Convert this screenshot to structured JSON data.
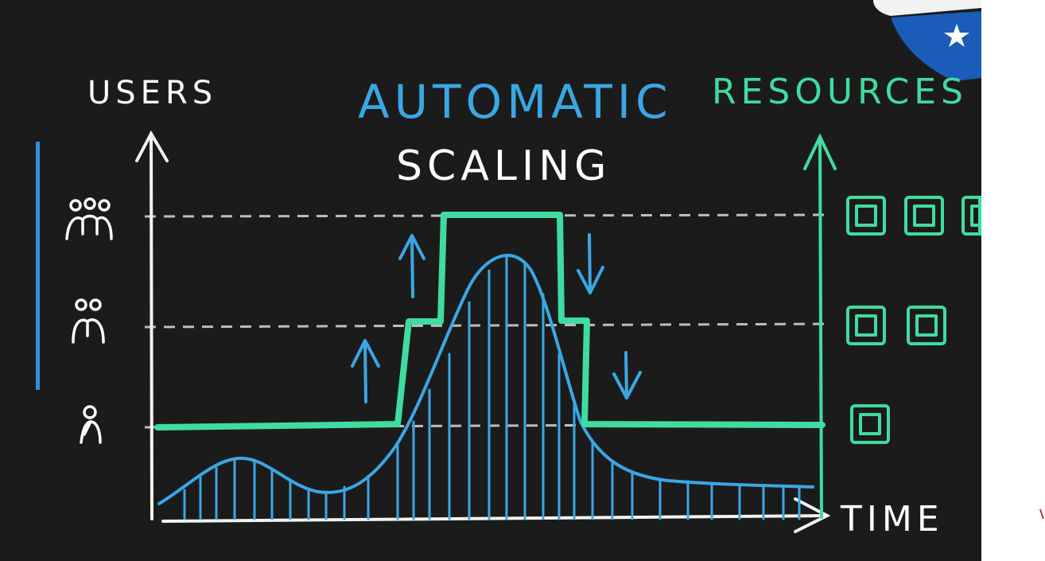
{
  "title_line1": "AUTOMATIC",
  "title_line2": "SCALING",
  "y_left_label": "USERS",
  "y_right_label": "RESOURCES",
  "x_label": "TIME",
  "colors": {
    "background": "#1b1b1b",
    "users_curve": "#3aa7e4",
    "resources_line": "#3fdca0",
    "axis": "#f2f2f2",
    "gridline": "#bdbdbd",
    "side_bar": "#2f8fe0",
    "badge_blue": "#1a5cb8"
  },
  "user_levels": [
    {
      "icon": "one-user-icon",
      "users": 1
    },
    {
      "icon": "two-users-icon",
      "users": 2
    },
    {
      "icon": "three-users-icon",
      "users": 3
    }
  ],
  "resource_levels": [
    {
      "servers": 1
    },
    {
      "servers": 2
    },
    {
      "servers": 3
    }
  ],
  "resources_steps": [
    "1",
    "2",
    "3",
    "2",
    "1"
  ],
  "scale_arrows": [
    "up",
    "up",
    "down",
    "down"
  ]
}
